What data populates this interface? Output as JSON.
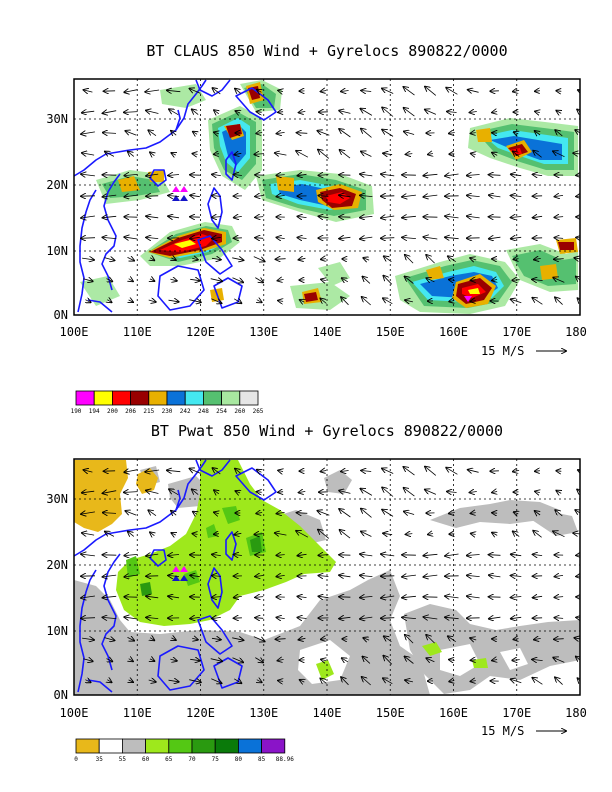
{
  "panels": [
    {
      "id": "claus",
      "title": "BT CLAUS 850 Wind + Gyrelocs 890822/0000",
      "x_ticks": [
        "100E",
        "110E",
        "120E",
        "130E",
        "140E",
        "150E",
        "160E",
        "170E",
        "180"
      ],
      "y_ticks": [
        "0N",
        "10N",
        "20N",
        "30N"
      ],
      "vector_label": "15 M/S",
      "colorbar": {
        "colors": [
          "#ff00ff",
          "#ffff00",
          "#ff0000",
          "#990000",
          "#e8b000",
          "#0a72d8",
          "#44e8f0",
          "#55c070",
          "#a8e8a0",
          "#e6e6e6"
        ],
        "labels": [
          "190",
          "194",
          "200",
          "206",
          "215",
          "230",
          "242",
          "248",
          "254",
          "260",
          "265"
        ]
      }
    },
    {
      "id": "pwat",
      "title": "BT Pwat 850 Wind + Gyrelocs 890822/0000",
      "x_ticks": [
        "100E",
        "110E",
        "120E",
        "130E",
        "140E",
        "150E",
        "160E",
        "170E",
        "180"
      ],
      "y_ticks": [
        "0N",
        "10N",
        "20N",
        "30N"
      ],
      "vector_label": "15 M/S",
      "colorbar": {
        "colors": [
          "#e8b81a",
          "#ffffff",
          "#bdbdbd",
          "#9ee81c",
          "#54c814",
          "#2a9a10",
          "#0a7a0a",
          "#0a72d8",
          "#8a14c8"
        ],
        "labels": [
          "0",
          "35",
          "55",
          "60",
          "65",
          "70",
          "75",
          "80",
          "85",
          "88.96"
        ]
      }
    }
  ],
  "palette": {
    "coast": "#1a1aff",
    "gyre_magenta": "#ff00ff",
    "gyre_blue": "#1414c8"
  }
}
